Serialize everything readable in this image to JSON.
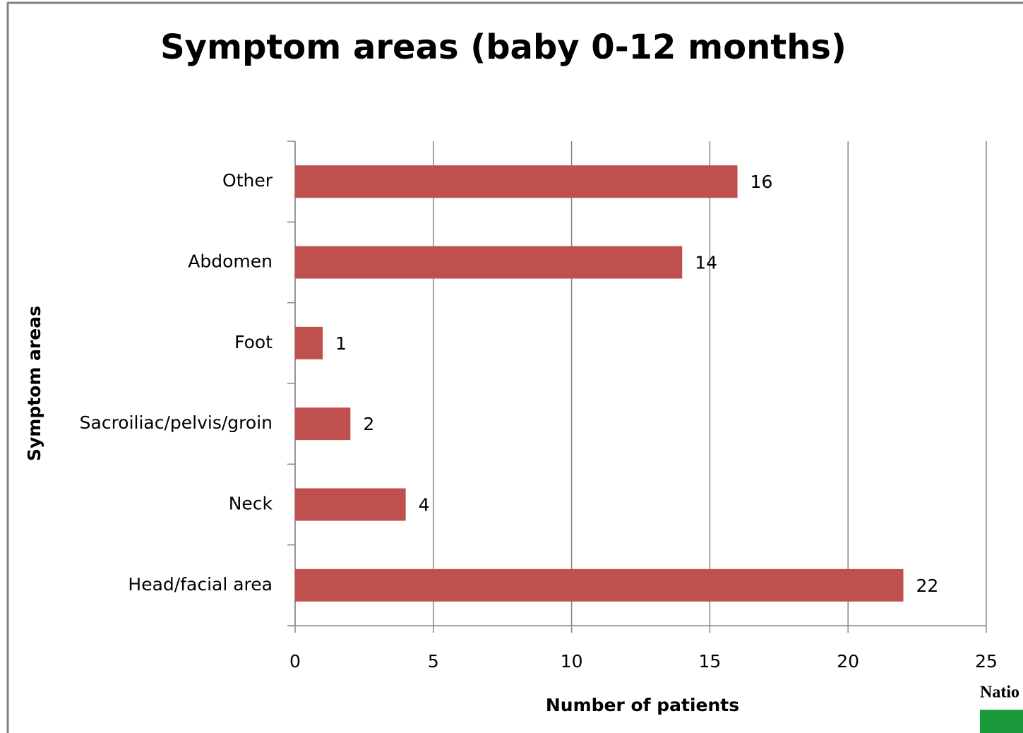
{
  "chart_data": {
    "type": "bar",
    "orientation": "horizontal",
    "title": "Symptom areas (baby 0-12 months)",
    "x_label": "Number of patients",
    "y_label": "Symptom areas",
    "categories": [
      "Head/facial area",
      "Neck",
      "Sacroiliac/pelvis/groin",
      "Foot",
      "Abdomen",
      "Other"
    ],
    "values": [
      22,
      4,
      2,
      1,
      14,
      16
    ],
    "color": "#c0504d",
    "xlim": [
      0,
      25
    ],
    "xticks": [
      0,
      5,
      10,
      15,
      20,
      25
    ],
    "grid": true
  },
  "logo_text": "Natio"
}
